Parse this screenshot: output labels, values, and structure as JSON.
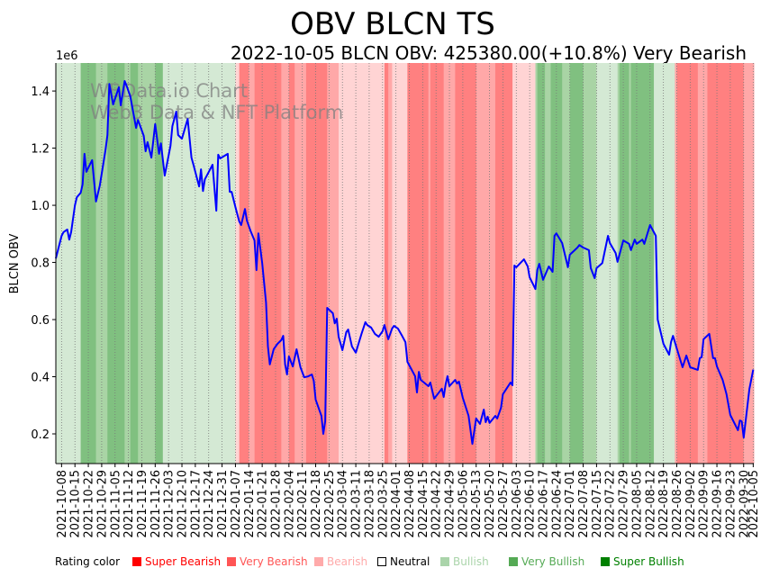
{
  "chart_data": {
    "type": "line",
    "title": "OBV BLCN TS",
    "subtitle": "2022-10-05 BLCN OBV: 425380.00(+10.8%) Very Bearish",
    "ylabel": "BLCN OBV",
    "y_scale_label": "1e6",
    "ylim": [
      0.096,
      1.498
    ],
    "yticks": [
      0.2,
      0.4,
      0.6,
      0.8,
      1.0,
      1.2,
      1.4
    ],
    "ytick_labels": [
      "0.2",
      "0.4",
      "0.6",
      "0.8",
      "1.0",
      "1.2",
      "1.4"
    ],
    "x_unit": "days since 2021-10-08",
    "xlim": [
      -3,
      362.3
    ],
    "xticks": [
      0,
      7,
      14,
      21,
      28,
      35,
      42,
      49,
      56,
      63,
      70,
      77,
      84,
      91,
      98,
      105,
      112,
      119,
      126,
      133,
      140,
      147,
      154,
      161,
      168,
      175,
      182,
      189,
      196,
      203,
      210,
      217,
      224,
      231,
      238,
      245,
      252,
      259,
      266,
      273,
      280,
      287,
      294,
      301,
      308,
      315,
      322,
      329,
      336,
      343,
      350,
      357,
      362
    ],
    "xtick_labels": [
      "2021-10-08",
      "2021-10-15",
      "2021-10-22",
      "2021-10-29",
      "2021-11-05",
      "2021-11-12",
      "2021-11-19",
      "2021-11-26",
      "2021-12-03",
      "2021-12-10",
      "2021-12-17",
      "2021-12-24",
      "2021-12-31",
      "2022-01-07",
      "2022-01-14",
      "2022-01-21",
      "2022-01-28",
      "2022-02-04",
      "2022-02-11",
      "2022-02-18",
      "2022-02-25",
      "2022-03-04",
      "2022-03-11",
      "2022-03-18",
      "2022-03-25",
      "2022-04-01",
      "2022-04-08",
      "2022-04-15",
      "2022-04-22",
      "2022-04-29",
      "2022-05-06",
      "2022-05-13",
      "2022-05-20",
      "2022-05-27",
      "2022-06-03",
      "2022-06-10",
      "2022-06-17",
      "2022-06-24",
      "2022-07-01",
      "2022-07-08",
      "2022-07-15",
      "2022-07-22",
      "2022-07-29",
      "2022-08-05",
      "2022-08-12",
      "2022-08-19",
      "2022-08-26",
      "2022-09-02",
      "2022-09-09",
      "2022-09-16",
      "2022-09-23",
      "2022-09-30",
      "2022-10-05"
    ],
    "grid": "vertical dotted at x ticks",
    "watermark": [
      "WBData.io Chart",
      "Web3 Data & NFT Platform"
    ],
    "series": [
      {
        "name": "BLCN OBV",
        "color": "#0000ff",
        "x": [
          -3,
          0,
          1,
          3,
          4,
          5,
          7,
          8,
          10,
          11,
          12,
          13,
          15,
          16,
          18,
          20,
          22,
          23,
          24,
          25,
          27,
          30,
          31,
          33,
          34,
          36,
          39,
          40,
          43,
          44,
          45,
          47,
          49,
          51,
          52,
          54,
          57,
          58,
          60,
          61,
          63,
          66,
          68,
          69,
          72,
          73,
          74,
          75,
          79,
          81,
          82,
          83,
          87,
          88,
          89,
          91,
          93,
          94,
          96,
          97,
          99,
          101,
          102,
          103,
          105,
          107,
          108,
          109,
          111,
          113,
          115,
          116,
          117,
          118,
          119,
          121,
          123,
          125,
          127,
          129,
          131,
          132,
          133,
          136,
          137,
          138,
          139,
          142,
          143,
          144,
          145,
          147,
          149,
          150,
          152,
          154,
          157,
          159,
          160,
          162,
          164,
          166,
          168,
          169,
          171,
          173,
          174,
          176,
          178,
          180,
          181,
          185,
          186,
          187,
          188,
          192,
          193,
          195,
          199,
          200,
          201,
          202,
          203,
          206,
          207,
          208,
          210,
          213,
          215,
          217,
          219,
          221,
          222,
          223,
          224,
          227,
          228,
          230,
          231,
          235,
          236,
          237,
          238,
          242,
          244,
          245,
          248,
          249,
          250,
          252,
          255,
          257,
          258,
          259,
          262,
          265,
          266,
          270,
          271,
          273,
          276,
          277,
          279,
          280,
          283,
          286,
          287,
          290,
          291,
          294,
          297,
          298,
          300,
          301,
          304,
          305,
          308,
          311,
          312,
          315,
          318,
          319,
          320,
          322,
          325,
          327,
          329,
          333,
          334,
          335,
          336,
          339,
          341,
          342,
          343,
          346,
          348,
          350,
          354,
          355,
          356,
          357,
          360,
          362
        ],
        "y": [
          0.814,
          0.893,
          0.906,
          0.915,
          0.88,
          0.906,
          1.0,
          1.028,
          1.044,
          1.073,
          1.18,
          1.117,
          1.145,
          1.158,
          1.013,
          1.069,
          1.151,
          1.195,
          1.246,
          1.425,
          1.353,
          1.413,
          1.35,
          1.435,
          1.419,
          1.381,
          1.271,
          1.299,
          1.243,
          1.189,
          1.221,
          1.167,
          1.284,
          1.18,
          1.217,
          1.104,
          1.208,
          1.277,
          1.328,
          1.246,
          1.233,
          1.302,
          1.167,
          1.142,
          1.066,
          1.126,
          1.05,
          1.091,
          1.142,
          0.981,
          1.177,
          1.164,
          1.18,
          1.047,
          1.047,
          0.994,
          0.943,
          0.931,
          0.987,
          0.946,
          0.909,
          0.877,
          0.773,
          0.902,
          0.799,
          0.66,
          0.506,
          0.443,
          0.496,
          0.515,
          0.528,
          0.543,
          0.443,
          0.408,
          0.471,
          0.436,
          0.496,
          0.433,
          0.398,
          0.401,
          0.408,
          0.386,
          0.32,
          0.263,
          0.2,
          0.244,
          0.641,
          0.622,
          0.587,
          0.603,
          0.54,
          0.493,
          0.556,
          0.565,
          0.506,
          0.484,
          0.55,
          0.591,
          0.581,
          0.572,
          0.55,
          0.54,
          0.559,
          0.581,
          0.531,
          0.569,
          0.578,
          0.569,
          0.546,
          0.521,
          0.452,
          0.402,
          0.345,
          0.417,
          0.389,
          0.367,
          0.38,
          0.323,
          0.358,
          0.329,
          0.373,
          0.402,
          0.367,
          0.389,
          0.376,
          0.383,
          0.326,
          0.263,
          0.165,
          0.254,
          0.235,
          0.285,
          0.241,
          0.26,
          0.238,
          0.263,
          0.254,
          0.291,
          0.339,
          0.38,
          0.37,
          0.789,
          0.783,
          0.811,
          0.786,
          0.748,
          0.707,
          0.773,
          0.795,
          0.739,
          0.786,
          0.767,
          0.893,
          0.902,
          0.868,
          0.783,
          0.827,
          0.852,
          0.861,
          0.852,
          0.843,
          0.78,
          0.745,
          0.78,
          0.798,
          0.893,
          0.868,
          0.833,
          0.802,
          0.877,
          0.865,
          0.843,
          0.88,
          0.865,
          0.88,
          0.865,
          0.931,
          0.893,
          0.6,
          0.515,
          0.477,
          0.521,
          0.543,
          0.499,
          0.433,
          0.474,
          0.433,
          0.424,
          0.465,
          0.468,
          0.531,
          0.55,
          0.465,
          0.465,
          0.436,
          0.389,
          0.339,
          0.266,
          0.213,
          0.247,
          0.244,
          0.187,
          0.357,
          0.425
        ]
      }
    ],
    "rating_bands": [
      [
        -3,
        10,
        "Bullish"
      ],
      [
        10,
        18,
        "Super Bullish"
      ],
      [
        18,
        24,
        "Very Bullish"
      ],
      [
        24,
        33,
        "Super Bullish"
      ],
      [
        33,
        36,
        "Very Bullish"
      ],
      [
        36,
        40,
        "Super Bullish"
      ],
      [
        40,
        49,
        "Very Bullish"
      ],
      [
        49,
        53,
        "Super Bullish"
      ],
      [
        53,
        91,
        "Bullish"
      ],
      [
        91,
        93,
        "Bearish"
      ],
      [
        93,
        98,
        "Super Bearish"
      ],
      [
        98,
        101,
        "Very Bearish"
      ],
      [
        101,
        115,
        "Super Bearish"
      ],
      [
        115,
        119,
        "Very Bearish"
      ],
      [
        119,
        122,
        "Super Bearish"
      ],
      [
        122,
        128,
        "Very Bearish"
      ],
      [
        128,
        139,
        "Super Bearish"
      ],
      [
        139,
        145,
        "Very Bearish"
      ],
      [
        145,
        169,
        "Bearish"
      ],
      [
        169,
        171,
        "Super Bearish"
      ],
      [
        171,
        173,
        "Very Bearish"
      ],
      [
        173,
        181,
        "Bearish"
      ],
      [
        181,
        192,
        "Super Bearish"
      ],
      [
        192,
        193,
        "Very Bearish"
      ],
      [
        193,
        200,
        "Super Bearish"
      ],
      [
        200,
        206,
        "Very Bearish"
      ],
      [
        206,
        217,
        "Super Bearish"
      ],
      [
        217,
        227,
        "Very Bearish"
      ],
      [
        227,
        236,
        "Super Bearish"
      ],
      [
        236,
        248,
        "Bearish"
      ],
      [
        248,
        249,
        "Very Bullish"
      ],
      [
        249,
        253,
        "Super Bullish"
      ],
      [
        253,
        256,
        "Very Bullish"
      ],
      [
        256,
        262,
        "Super Bullish"
      ],
      [
        262,
        266,
        "Very Bullish"
      ],
      [
        266,
        273,
        "Super Bullish"
      ],
      [
        273,
        280,
        "Very Bullish"
      ],
      [
        280,
        291,
        "Bullish"
      ],
      [
        291,
        292,
        "Very Bullish"
      ],
      [
        292,
        297,
        "Super Bullish"
      ],
      [
        297,
        298,
        "Very Bullish"
      ],
      [
        298,
        310,
        "Super Bullish"
      ],
      [
        310,
        321,
        "Bullish"
      ],
      [
        321,
        322,
        "Very Bearish"
      ],
      [
        322,
        333,
        "Super Bearish"
      ],
      [
        333,
        338,
        "Very Bearish"
      ],
      [
        338,
        357,
        "Super Bearish"
      ],
      [
        357,
        362.3,
        "Very Bearish"
      ]
    ],
    "band_colors": {
      "Super Bearish": "#ff8080",
      "Very Bearish": "#ffa8a8",
      "Bearish": "#ffd4d4",
      "Neutral": "#ffffff",
      "Bullish": "#d4e9d4",
      "Very Bullish": "#a9d4a5",
      "Super Bullish": "#80c080"
    },
    "legend": {
      "title": "Rating color",
      "position": "bottom",
      "items": [
        {
          "label": "Super Bearish",
          "color": "#ff0000"
        },
        {
          "label": "Very Bearish",
          "color": "#ff5555"
        },
        {
          "label": "Bearish",
          "color": "#ffaaaa"
        },
        {
          "label": "Neutral",
          "color": "#000000"
        },
        {
          "label": "Bullish",
          "color": "#aad4aa"
        },
        {
          "label": "Very Bullish",
          "color": "#55aa55"
        },
        {
          "label": "Super Bullish",
          "color": "#008000"
        }
      ]
    }
  }
}
